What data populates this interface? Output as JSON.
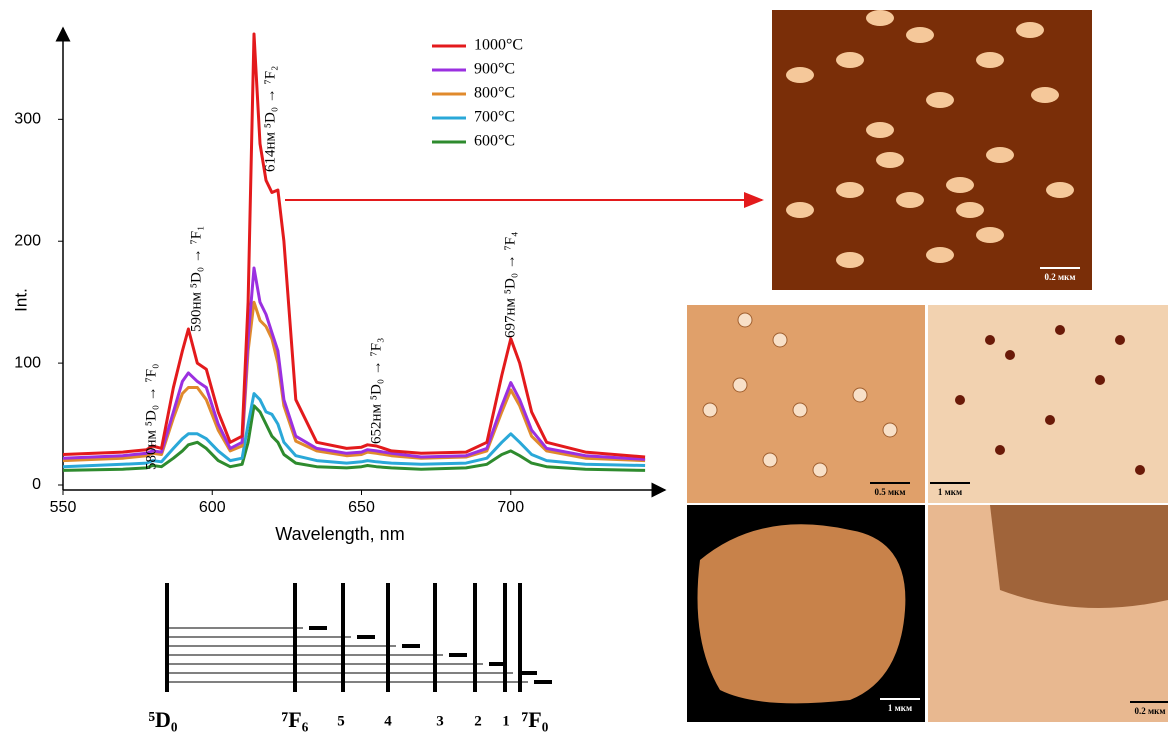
{
  "chart_data": {
    "type": "line",
    "xlabel": "Wavelength, nm",
    "ylabel": "Int.",
    "x": [
      550,
      570,
      578,
      580,
      583,
      587,
      590,
      592,
      595,
      598,
      602,
      606,
      610,
      612,
      614,
      616,
      618,
      620,
      622,
      624,
      628,
      635,
      645,
      650,
      652,
      655,
      660,
      670,
      685,
      692,
      697,
      700,
      703,
      707,
      712,
      725,
      745
    ],
    "series": [
      {
        "name": "1000°C",
        "color": "#e31a1c",
        "values": [
          25,
          27,
          29,
          32,
          30,
          80,
          110,
          128,
          100,
          95,
          60,
          35,
          40,
          150,
          370,
          280,
          250,
          240,
          242,
          200,
          70,
          35,
          30,
          31,
          33,
          32,
          28,
          26,
          27,
          35,
          90,
          120,
          100,
          60,
          35,
          27,
          23
        ]
      },
      {
        "name": "900°C",
        "color": "#9b30e0",
        "values": [
          22,
          24,
          26,
          28,
          27,
          60,
          85,
          92,
          85,
          80,
          50,
          30,
          35,
          120,
          178,
          150,
          140,
          125,
          110,
          70,
          40,
          30,
          26,
          27,
          29,
          28,
          26,
          23,
          24,
          30,
          65,
          84,
          70,
          45,
          30,
          24,
          21
        ]
      },
      {
        "name": "800°C",
        "color": "#e08a2c",
        "values": [
          20,
          22,
          24,
          26,
          25,
          55,
          75,
          80,
          80,
          70,
          45,
          28,
          32,
          110,
          150,
          135,
          130,
          120,
          100,
          65,
          36,
          28,
          24,
          25,
          27,
          26,
          24,
          22,
          23,
          28,
          60,
          78,
          65,
          40,
          28,
          22,
          20
        ]
      },
      {
        "name": "700°C",
        "color": "#2aa8d8",
        "values": [
          15,
          17,
          18,
          20,
          19,
          30,
          38,
          42,
          42,
          38,
          28,
          20,
          22,
          50,
          75,
          70,
          60,
          58,
          50,
          35,
          24,
          20,
          18,
          19,
          20,
          19,
          18,
          17,
          18,
          22,
          35,
          42,
          35,
          25,
          20,
          17,
          16
        ]
      },
      {
        "name": "600°C",
        "color": "#2e8b2e",
        "values": [
          12,
          13,
          14,
          16,
          15,
          22,
          28,
          33,
          35,
          30,
          20,
          15,
          17,
          35,
          65,
          60,
          50,
          40,
          35,
          25,
          18,
          15,
          14,
          15,
          16,
          15,
          14,
          13,
          14,
          17,
          25,
          28,
          24,
          18,
          15,
          13,
          12
        ]
      }
    ],
    "xlim": [
      550,
      750
    ],
    "ylim": [
      0,
      370
    ],
    "xticks": [
      550,
      600,
      650,
      700
    ],
    "yticks": [
      0,
      100,
      200,
      300
    ],
    "grid": false,
    "annotations": [
      "580нм ⁵D₀ → ⁷F₀",
      "590нм ⁵D₀ → ⁷F₁",
      "614нм ⁵D₀ → ⁷F₂",
      "652нм ⁵D₀ → ⁷F₃",
      "697нм ⁵D₀ → ⁷F₄"
    ]
  },
  "diagram": {
    "labels": [
      "⁵D₀",
      "⁷F₆",
      "5",
      "4",
      "3",
      "2",
      "1",
      "⁷F₀"
    ]
  },
  "images": {
    "scale_bars": [
      "0.2 мкм",
      "0.5 мкм",
      "1 мкм",
      "1 мкм",
      "0.2 мкм"
    ]
  }
}
